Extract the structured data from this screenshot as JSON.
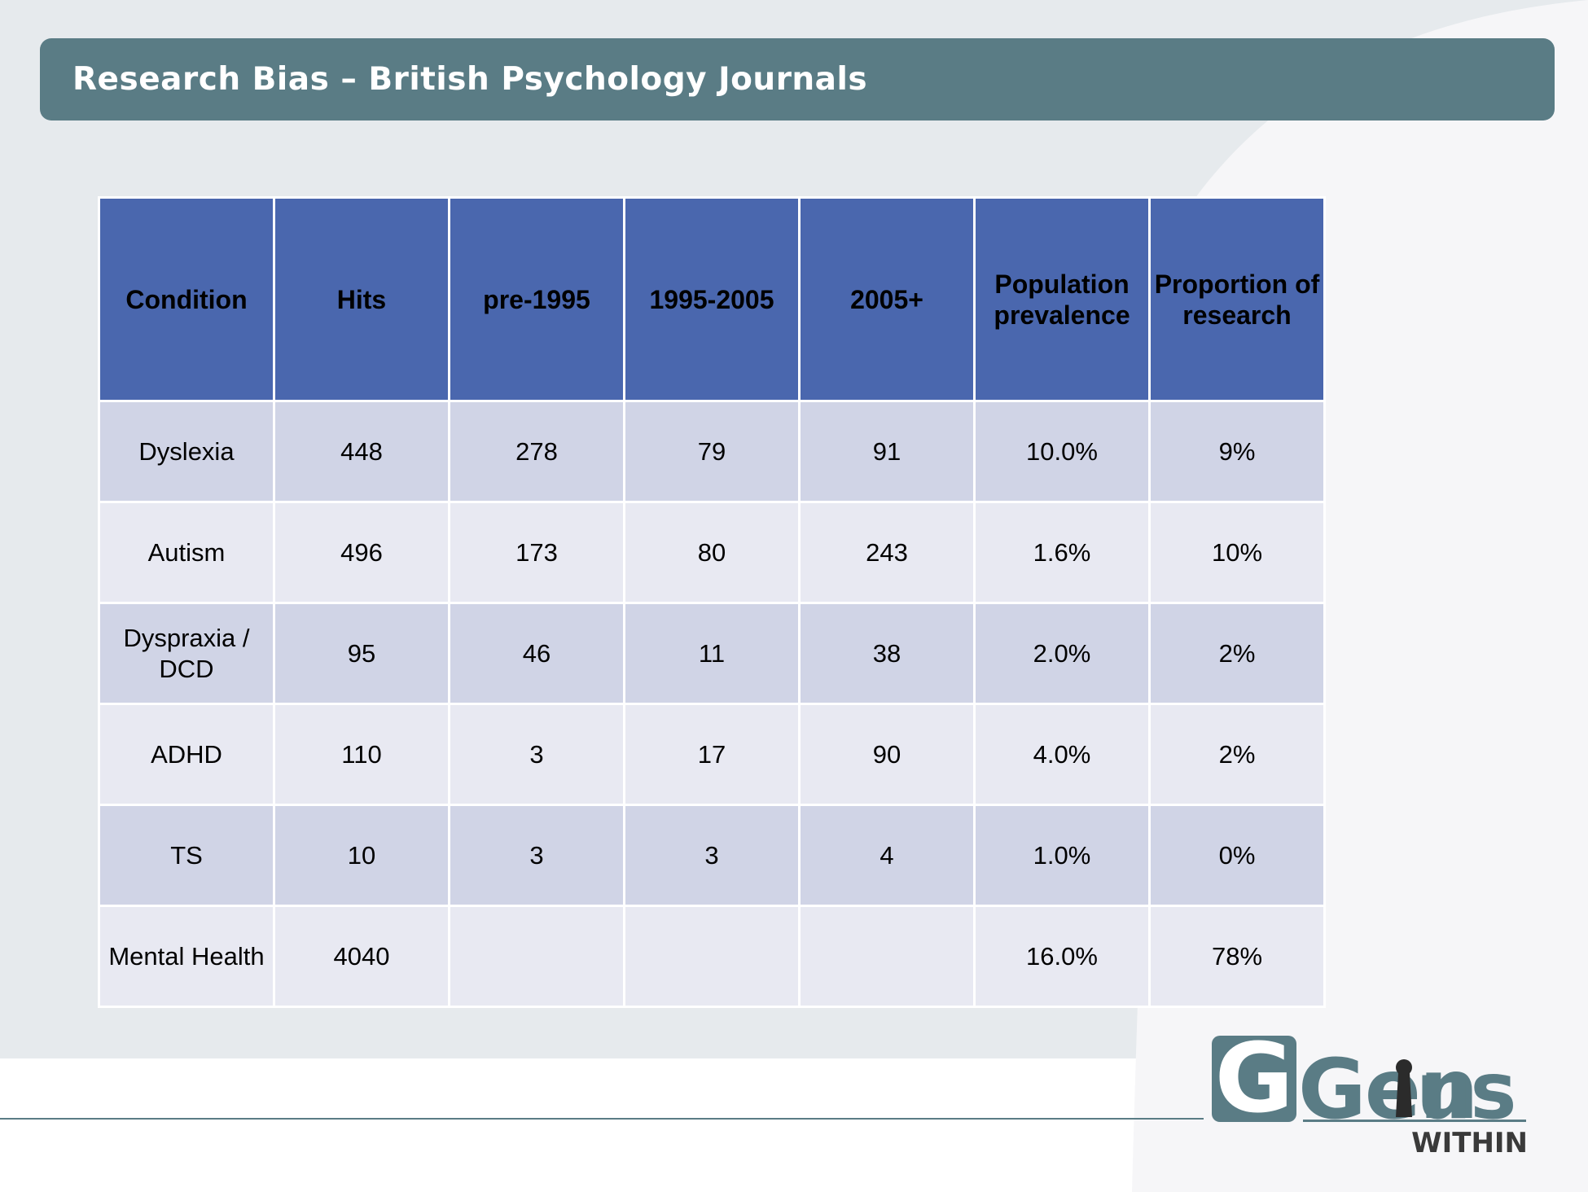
{
  "slide": {
    "title": "Research Bias – British Psychology Journals"
  },
  "colors": {
    "title_bar": "#5a7c85",
    "header_fill": "#4a67ae",
    "row_odd": "#d0d4e6",
    "row_even": "#e8e9f2",
    "logo": "#5a7c85"
  },
  "table": {
    "headers": [
      "Condition",
      "Hits",
      "pre-1995",
      "1995-2005",
      "2005+",
      "Population prevalence",
      "Proportion of research"
    ],
    "rows": [
      [
        "Dyslexia",
        "448",
        "278",
        "79",
        "91",
        "10.0%",
        "9%"
      ],
      [
        "Autism",
        "496",
        "173",
        "80",
        "243",
        "1.6%",
        "10%"
      ],
      [
        "Dyspraxia / DCD",
        "95",
        "46",
        "11",
        "38",
        "2.0%",
        "2%"
      ],
      [
        "ADHD",
        "110",
        "3",
        "17",
        "90",
        "4.0%",
        "2%"
      ],
      [
        "TS",
        "10",
        "3",
        "3",
        "4",
        "1.0%",
        "0%"
      ],
      [
        "Mental Health",
        "4040",
        "",
        "",
        "",
        "16.0%",
        "78%"
      ]
    ]
  },
  "logo": {
    "word_part1": "Gen",
    "word_part2": "us",
    "tagline": "WITHIN"
  }
}
